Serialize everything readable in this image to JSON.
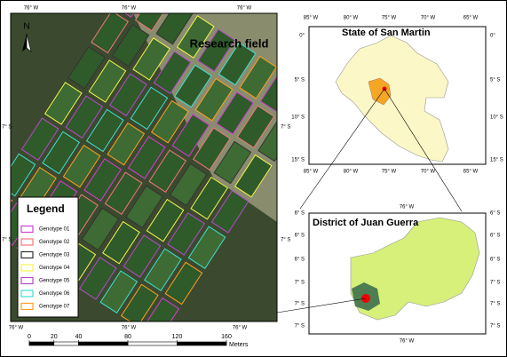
{
  "research_field": {
    "title": "Research field",
    "north": "N",
    "top_labels": [
      "76° W",
      "76° W",
      "76° W"
    ],
    "bottom_labels": [
      "76° W",
      "76° W",
      "76° W"
    ],
    "left_labels": [
      "7° S",
      "7° S"
    ],
    "right_labels": [
      "7° S",
      "7° S"
    ]
  },
  "legend": {
    "title": "Legend",
    "items": [
      {
        "label": "Genotype 01",
        "color": "#d43fd4"
      },
      {
        "label": "Genotype 02",
        "color": "#f07a7a"
      },
      {
        "label": "Genotype 03",
        "color": "#333333"
      },
      {
        "label": "Genotype 04",
        "color": "#f5f54a"
      },
      {
        "label": "Genotype 05",
        "color": "#b44cc8"
      },
      {
        "label": "Genotype 06",
        "color": "#3fe0d0"
      },
      {
        "label": "Genotype 07",
        "color": "#ffa020"
      }
    ]
  },
  "scale_bar": {
    "ticks": [
      0,
      20,
      40,
      80,
      120,
      160
    ],
    "unit": "Meters"
  },
  "state_map": {
    "title": "State of San Martin",
    "top_labels": [
      "85° W",
      "80° W",
      "75° W",
      "70° W",
      "65° W"
    ],
    "bottom_labels": [
      "85° W",
      "80° W",
      "75° W",
      "70° W",
      "65° W"
    ],
    "left_labels": [
      "0°",
      "5° S",
      "10° S",
      "15° S"
    ],
    "right_labels": [
      "0°",
      "5° S",
      "10° S",
      "15° S"
    ]
  },
  "district_map": {
    "title": "District of Juan Guerra",
    "top_labels": [
      "76° W"
    ],
    "bottom_labels": [
      "76° W"
    ],
    "left_labels": [
      "6° S",
      "6° S",
      "6° S",
      "7° S",
      "7° S",
      "7° S"
    ],
    "right_labels": [
      "6° S",
      "6° S",
      "6° S",
      "7° S",
      "7° S",
      "7° S"
    ]
  }
}
